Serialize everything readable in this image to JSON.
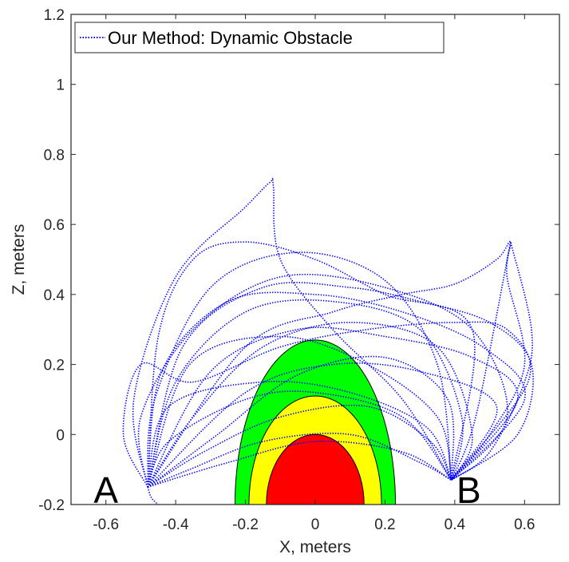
{
  "chart_data": {
    "type": "line",
    "title": "",
    "xlabel": "X, meters",
    "ylabel": "Z, meters",
    "xlim": [
      -0.7,
      0.7
    ],
    "ylim": [
      -0.2,
      1.2
    ],
    "xticks": [
      -0.6,
      -0.4,
      -0.2,
      0,
      0.2,
      0.4,
      0.6
    ],
    "xtick_labels": [
      "-0.6",
      "-0.4",
      "-0.2",
      "0",
      "0.2",
      "0.4",
      "0.6"
    ],
    "yticks": [
      -0.2,
      0,
      0.2,
      0.4,
      0.6,
      0.8,
      1,
      1.2
    ],
    "ytick_labels": [
      "-0.2",
      "0",
      "0.2",
      "0.4",
      "0.6",
      "0.8",
      "1",
      "1.2"
    ],
    "grid": false,
    "legend": {
      "placement": "top-left",
      "entries": [
        "Our Method: Dynamic Obstacle"
      ]
    },
    "annotations": [
      {
        "text": "A",
        "x": -0.6,
        "y": -0.2
      },
      {
        "text": "B",
        "x": 0.44,
        "y": -0.2
      }
    ],
    "endpoints": {
      "A": [
        -0.48,
        -0.15
      ],
      "B": [
        0.39,
        -0.13
      ]
    },
    "obstacle_zones": [
      {
        "color": "#00ff00",
        "half_width": 0.23,
        "top": 0.27,
        "bottom": -0.2
      },
      {
        "color": "#ffff00",
        "half_width": 0.19,
        "top": 0.11,
        "bottom": -0.2
      },
      {
        "color": "#ff0000",
        "half_width": 0.14,
        "top": 0.0,
        "bottom": -0.2
      }
    ],
    "series": [
      {
        "color": "#0000ff",
        "style": "dotted",
        "trajectories": [
          [
            [
              -0.48,
              -0.15
            ],
            [
              -0.52,
              0.1
            ],
            [
              -0.4,
              0.45
            ],
            [
              -0.2,
              0.65
            ],
            [
              -0.13,
              0.72
            ],
            [
              -0.12,
              0.71
            ],
            [
              -0.1,
              0.5
            ],
            [
              0.05,
              0.3
            ],
            [
              0.25,
              0.1
            ],
            [
              0.39,
              -0.13
            ]
          ],
          [
            [
              -0.48,
              -0.15
            ],
            [
              -0.46,
              0.1
            ],
            [
              -0.3,
              0.42
            ],
            [
              -0.05,
              0.52
            ],
            [
              0.2,
              0.44
            ],
            [
              0.35,
              0.2
            ],
            [
              0.39,
              -0.13
            ]
          ],
          [
            [
              -0.48,
              -0.15
            ],
            [
              -0.4,
              0.15
            ],
            [
              -0.2,
              0.35
            ],
            [
              0.05,
              0.38
            ],
            [
              0.3,
              0.3
            ],
            [
              0.42,
              0.05
            ],
            [
              0.39,
              -0.13
            ]
          ],
          [
            [
              -0.48,
              -0.15
            ],
            [
              -0.35,
              0.05
            ],
            [
              -0.15,
              0.25
            ],
            [
              0.1,
              0.32
            ],
            [
              0.35,
              0.25
            ],
            [
              0.45,
              0.0
            ],
            [
              0.39,
              -0.13
            ]
          ],
          [
            [
              -0.48,
              -0.15
            ],
            [
              -0.28,
              0.0
            ],
            [
              -0.05,
              0.17
            ],
            [
              0.2,
              0.22
            ],
            [
              0.38,
              0.1
            ],
            [
              0.39,
              -0.13
            ]
          ],
          [
            [
              -0.48,
              -0.15
            ],
            [
              -0.32,
              -0.05
            ],
            [
              -0.1,
              0.05
            ],
            [
              0.15,
              0.08
            ],
            [
              0.33,
              -0.02
            ],
            [
              0.39,
              -0.13
            ]
          ],
          [
            [
              -0.48,
              -0.15
            ],
            [
              -0.36,
              -0.1
            ],
            [
              -0.15,
              -0.02
            ],
            [
              0.1,
              0.0
            ],
            [
              0.3,
              -0.08
            ],
            [
              0.39,
              -0.13
            ]
          ],
          [
            [
              -0.48,
              -0.15
            ],
            [
              -0.5,
              0.05
            ],
            [
              -0.35,
              0.3
            ],
            [
              -0.1,
              0.45
            ],
            [
              0.2,
              0.42
            ],
            [
              0.45,
              0.3
            ],
            [
              0.55,
              0.05
            ],
            [
              0.39,
              -0.13
            ]
          ],
          [
            [
              -0.48,
              -0.15
            ],
            [
              -0.44,
              0.18
            ],
            [
              -0.25,
              0.38
            ],
            [
              0.0,
              0.4
            ],
            [
              0.25,
              0.35
            ],
            [
              0.48,
              0.25
            ],
            [
              0.6,
              0.1
            ],
            [
              0.39,
              -0.13
            ]
          ],
          [
            [
              -0.48,
              -0.15
            ],
            [
              -0.38,
              0.25
            ],
            [
              -0.15,
              0.42
            ],
            [
              0.1,
              0.42
            ],
            [
              0.3,
              0.38
            ],
            [
              0.5,
              0.32
            ],
            [
              0.62,
              0.2
            ],
            [
              0.58,
              0.0
            ],
            [
              0.39,
              -0.13
            ]
          ],
          [
            [
              -0.48,
              -0.15
            ],
            [
              -0.3,
              0.18
            ],
            [
              -0.05,
              0.3
            ],
            [
              0.2,
              0.28
            ],
            [
              0.45,
              0.22
            ],
            [
              0.58,
              0.1
            ],
            [
              0.39,
              -0.13
            ]
          ],
          [
            [
              -0.48,
              -0.15
            ],
            [
              -0.2,
              0.12
            ],
            [
              0.05,
              0.2
            ],
            [
              0.3,
              0.18
            ],
            [
              0.52,
              0.08
            ],
            [
              0.39,
              -0.13
            ]
          ],
          [
            [
              -0.48,
              -0.15
            ],
            [
              -0.55,
              0.0
            ],
            [
              -0.5,
              0.2
            ],
            [
              -0.35,
              0.15
            ],
            [
              -0.1,
              0.25
            ],
            [
              0.15,
              0.3
            ],
            [
              0.4,
              0.32
            ],
            [
              0.55,
              0.3
            ],
            [
              0.61,
              0.15
            ],
            [
              0.39,
              -0.13
            ]
          ],
          [
            [
              -0.48,
              -0.15
            ],
            [
              -0.42,
              -0.02
            ],
            [
              -0.2,
              0.1
            ],
            [
              0.0,
              0.12
            ],
            [
              0.25,
              0.05
            ],
            [
              0.39,
              -0.13
            ]
          ],
          [
            [
              -0.48,
              -0.15
            ],
            [
              -0.25,
              -0.08
            ],
            [
              0.0,
              -0.02
            ],
            [
              0.25,
              -0.05
            ],
            [
              0.39,
              -0.13
            ]
          ],
          [
            [
              -0.48,
              -0.15
            ],
            [
              -0.2,
              0.25
            ],
            [
              0.05,
              0.35
            ],
            [
              0.25,
              0.4
            ],
            [
              0.4,
              0.43
            ],
            [
              0.52,
              0.5
            ],
            [
              0.56,
              0.55
            ],
            [
              0.55,
              0.45
            ],
            [
              0.6,
              0.2
            ],
            [
              0.5,
              0.0
            ],
            [
              0.39,
              -0.13
            ]
          ],
          [
            [
              -0.48,
              -0.15
            ],
            [
              -0.45,
              0.28
            ],
            [
              -0.35,
              0.5
            ],
            [
              -0.2,
              0.55
            ],
            [
              0.0,
              0.5
            ],
            [
              0.2,
              0.4
            ],
            [
              0.45,
              0.3
            ],
            [
              0.39,
              -0.13
            ]
          ],
          [
            [
              -0.48,
              -0.15
            ],
            [
              -0.36,
              0.2
            ],
            [
              -0.1,
              0.28
            ],
            [
              0.15,
              0.2
            ],
            [
              0.35,
              0.05
            ],
            [
              0.39,
              -0.13
            ]
          ],
          [
            [
              -0.48,
              -0.15
            ],
            [
              -0.42,
              0.08
            ],
            [
              -0.15,
              0.15
            ],
            [
              0.1,
              0.12
            ],
            [
              0.32,
              0.02
            ],
            [
              0.39,
              -0.13
            ]
          ],
          [
            [
              -0.48,
              -0.15
            ],
            [
              -0.47,
              -0.18
            ],
            [
              -0.45,
              -0.2
            ]
          ],
          [
            [
              0.39,
              -0.13
            ],
            [
              0.46,
              0.05
            ],
            [
              0.56,
              0.55
            ]
          ],
          [
            [
              0.39,
              -0.13
            ],
            [
              0.5,
              -0.05
            ],
            [
              0.6,
              0.15
            ],
            [
              0.62,
              0.3
            ],
            [
              0.56,
              0.55
            ]
          ]
        ]
      }
    ]
  }
}
